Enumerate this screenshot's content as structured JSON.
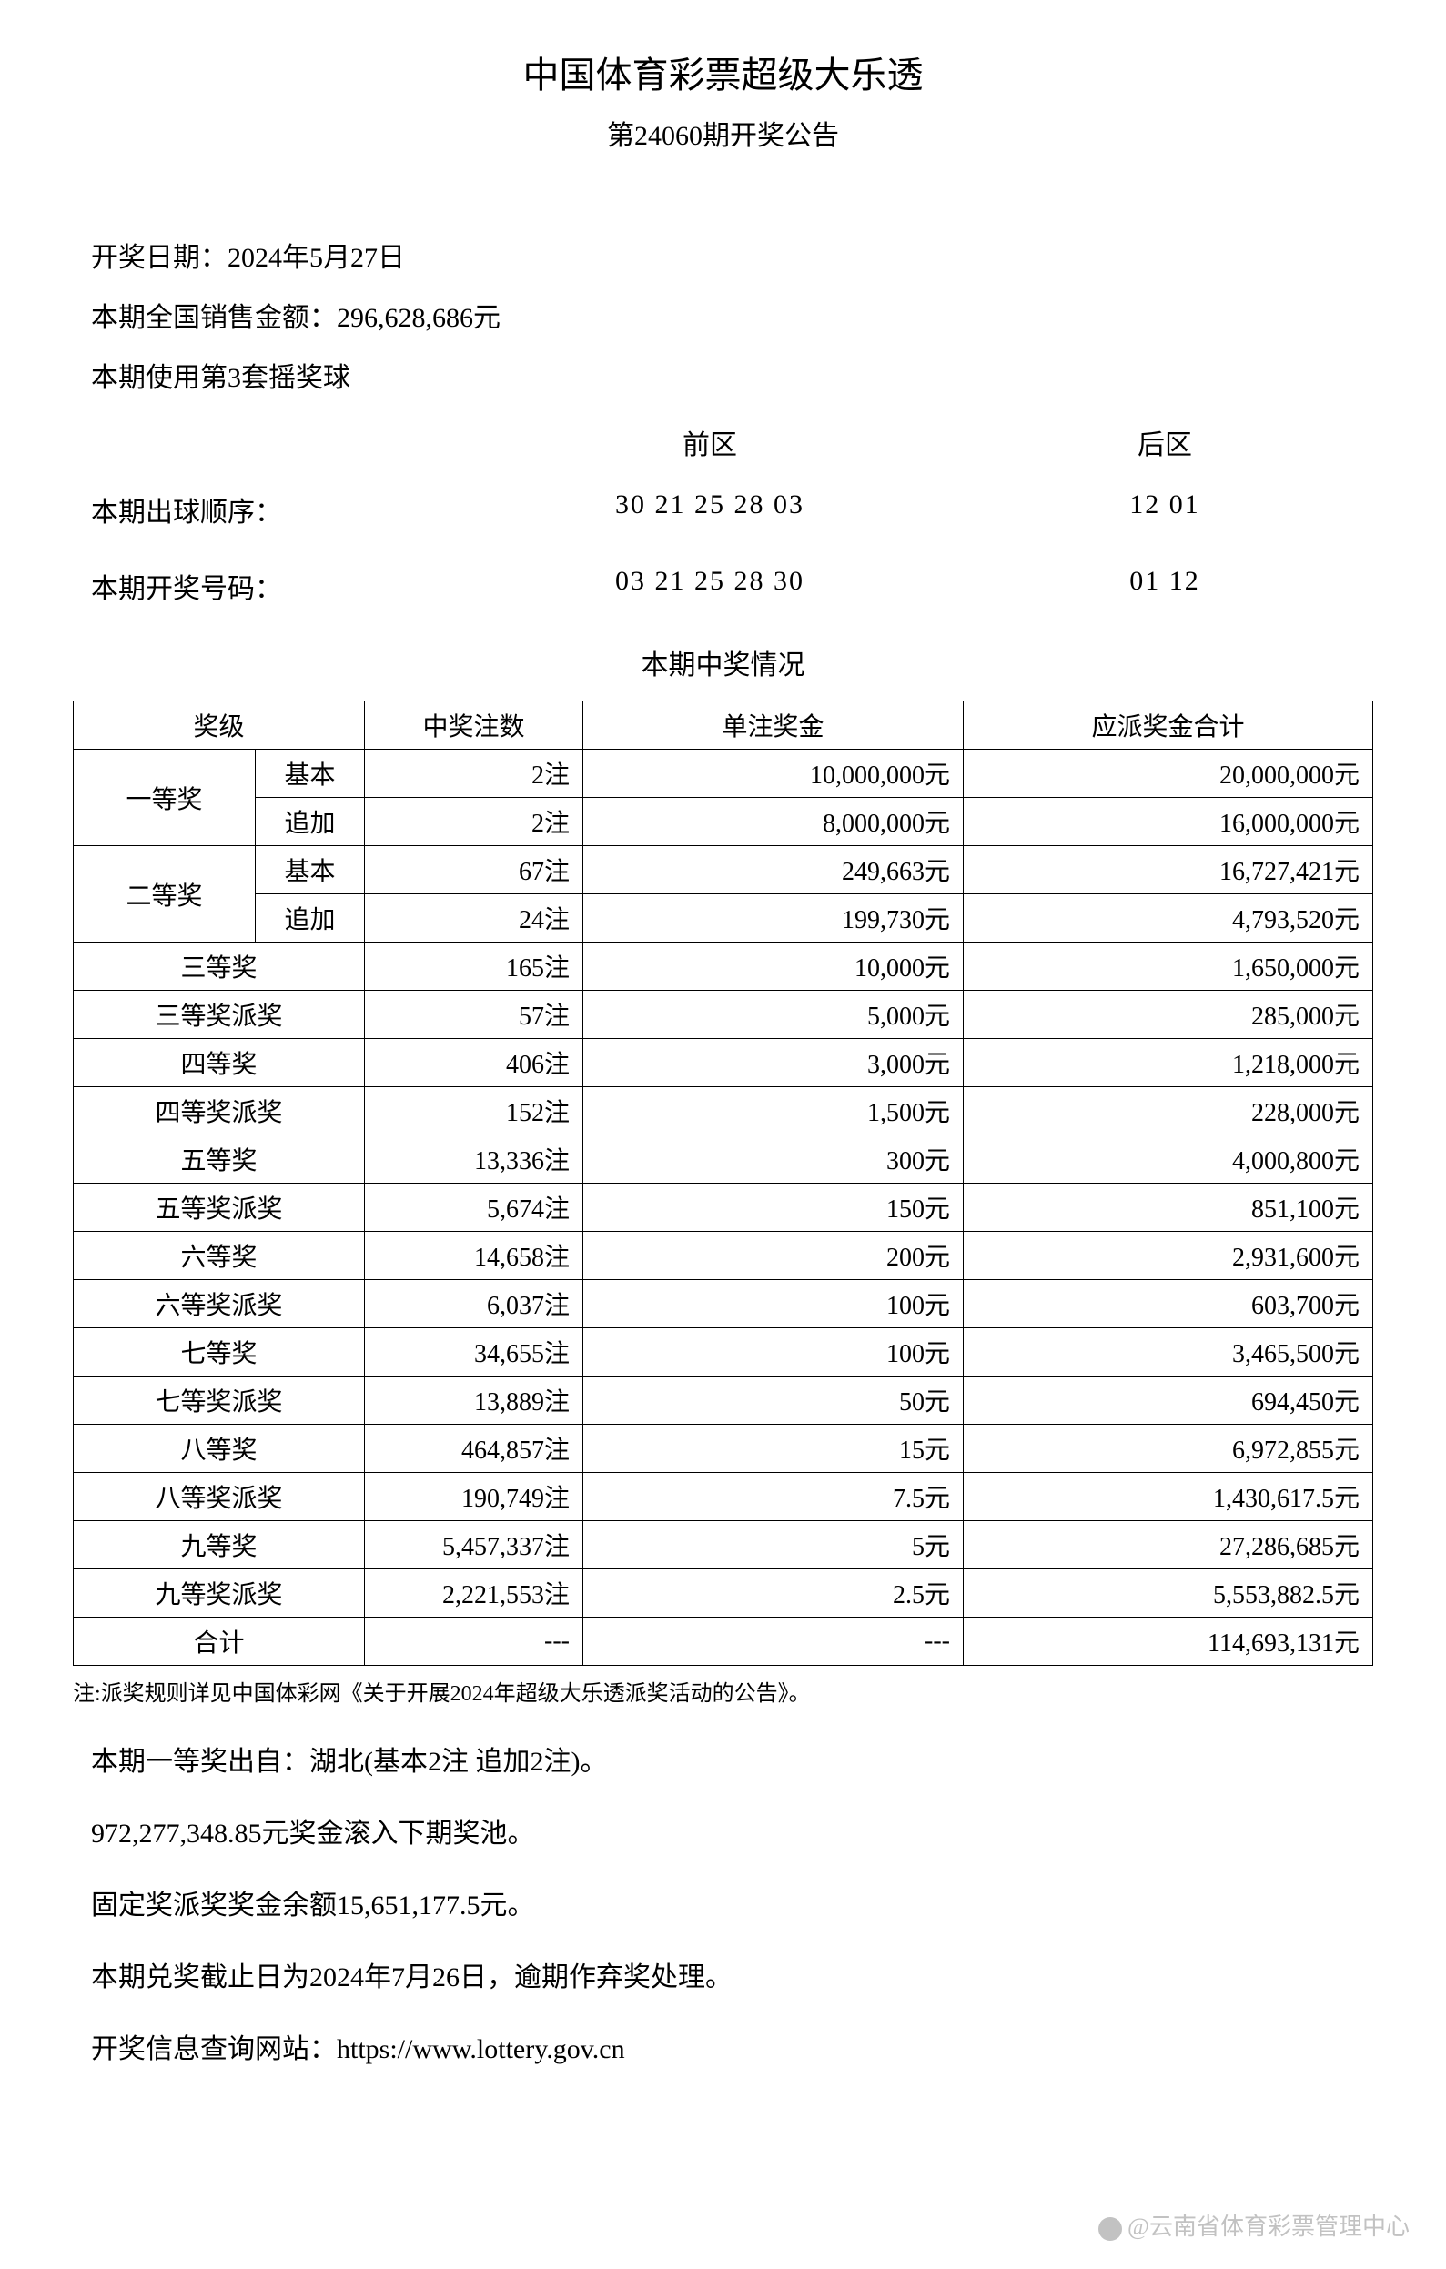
{
  "header": {
    "title": "中国体育彩票超级大乐透",
    "subtitle": "第24060期开奖公告"
  },
  "info": {
    "draw_date": "开奖日期：2024年5月27日",
    "sales": "本期全国销售金额：296,628,686元",
    "ball_set": "本期使用第3套摇奖球"
  },
  "numbers": {
    "front_label": "前区",
    "back_label": "后区",
    "draw_order_label": "本期出球顺序：",
    "winning_label": "本期开奖号码：",
    "draw_order_front": "30 21 25 28 03",
    "draw_order_back": "12 01",
    "winning_front": "03 21 25 28 30",
    "winning_back": "01 12"
  },
  "table": {
    "section_title": "本期中奖情况",
    "headers": {
      "prize_level": "奖级",
      "count": "中奖注数",
      "amount": "单注奖金",
      "total": "应派奖金合计"
    },
    "grouped_rows": [
      {
        "level": "一等奖",
        "sub1": "基本",
        "count1": "2注",
        "amount1": "10,000,000元",
        "total1": "20,000,000元",
        "sub2": "追加",
        "count2": "2注",
        "amount2": "8,000,000元",
        "total2": "16,000,000元"
      },
      {
        "level": "二等奖",
        "sub1": "基本",
        "count1": "67注",
        "amount1": "249,663元",
        "total1": "16,727,421元",
        "sub2": "追加",
        "count2": "24注",
        "amount2": "199,730元",
        "total2": "4,793,520元"
      }
    ],
    "simple_rows": [
      {
        "level": "三等奖",
        "count": "165注",
        "amount": "10,000元",
        "total": "1,650,000元"
      },
      {
        "level": "三等奖派奖",
        "count": "57注",
        "amount": "5,000元",
        "total": "285,000元"
      },
      {
        "level": "四等奖",
        "count": "406注",
        "amount": "3,000元",
        "total": "1,218,000元"
      },
      {
        "level": "四等奖派奖",
        "count": "152注",
        "amount": "1,500元",
        "total": "228,000元"
      },
      {
        "level": "五等奖",
        "count": "13,336注",
        "amount": "300元",
        "total": "4,000,800元"
      },
      {
        "level": "五等奖派奖",
        "count": "5,674注",
        "amount": "150元",
        "total": "851,100元"
      },
      {
        "level": "六等奖",
        "count": "14,658注",
        "amount": "200元",
        "total": "2,931,600元"
      },
      {
        "level": "六等奖派奖",
        "count": "6,037注",
        "amount": "100元",
        "total": "603,700元"
      },
      {
        "level": "七等奖",
        "count": "34,655注",
        "amount": "100元",
        "total": "3,465,500元"
      },
      {
        "level": "七等奖派奖",
        "count": "13,889注",
        "amount": "50元",
        "total": "694,450元"
      },
      {
        "level": "八等奖",
        "count": "464,857注",
        "amount": "15元",
        "total": "6,972,855元"
      },
      {
        "level": "八等奖派奖",
        "count": "190,749注",
        "amount": "7.5元",
        "total": "1,430,617.5元"
      },
      {
        "level": "九等奖",
        "count": "5,457,337注",
        "amount": "5元",
        "total": "27,286,685元"
      },
      {
        "level": "九等奖派奖",
        "count": "2,221,553注",
        "amount": "2.5元",
        "total": "5,553,882.5元"
      }
    ],
    "total_row": {
      "level": "合计",
      "count": "---",
      "amount": "---",
      "total": "114,693,131元"
    }
  },
  "note": "注:派奖规则详见中国体彩网《关于开展2024年超级大乐透派奖活动的公告》。",
  "footer": [
    "本期一等奖出自：湖北(基本2注 追加2注)。",
    "972,277,348.85元奖金滚入下期奖池。",
    "固定奖派奖奖金余额15,651,177.5元。",
    "本期兑奖截止日为2024年7月26日，逾期作弃奖处理。",
    "开奖信息查询网站：https://www.lottery.gov.cn"
  ],
  "watermark": "@云南省体育彩票管理中心"
}
